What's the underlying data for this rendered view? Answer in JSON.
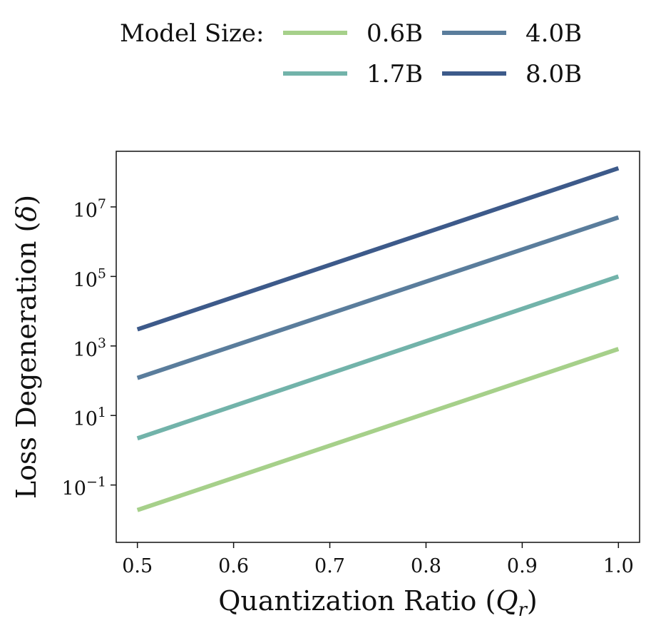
{
  "legend": {
    "title": "Model Size:",
    "entries": [
      {
        "label": "0.6B",
        "color": "#a6d08a"
      },
      {
        "label": "1.7B",
        "color": "#72b3aa"
      },
      {
        "label": "4.0B",
        "color": "#5a7d9c"
      },
      {
        "label": "8.0B",
        "color": "#3d5a8a"
      }
    ]
  },
  "chart_data": {
    "type": "line",
    "xlabel": "Quantization Ratio (Q_r)",
    "xlabel_main": "Quantization Ratio (",
    "xlabel_symbol": "Q",
    "xlabel_sub": "r",
    "xlabel_close": ")",
    "ylabel": "Loss Degeneration (δ)",
    "ylabel_main": "Loss Degeneration (",
    "ylabel_symbol": "δ",
    "ylabel_close": ")",
    "yscale": "log",
    "xlim": [
      0.478,
      1.022
    ],
    "ylim_log10": [
      -2.65,
      8.6
    ],
    "xticks": [
      {
        "value": 0.5,
        "label": "0.5"
      },
      {
        "value": 0.6,
        "label": "0.6"
      },
      {
        "value": 0.7,
        "label": "0.7"
      },
      {
        "value": 0.8,
        "label": "0.8"
      },
      {
        "value": 0.9,
        "label": "0.9"
      },
      {
        "value": 1.0,
        "label": "1.0"
      }
    ],
    "yticks": [
      {
        "exp": -1,
        "base": "10",
        "sup": "−1"
      },
      {
        "exp": 1,
        "base": "10",
        "sup": "1"
      },
      {
        "exp": 3,
        "base": "10",
        "sup": "3"
      },
      {
        "exp": 5,
        "base": "10",
        "sup": "5"
      },
      {
        "exp": 7,
        "base": "10",
        "sup": "7"
      }
    ],
    "grid": false,
    "legend_position": "top-center, outside plot",
    "series": [
      {
        "name": "0.6B",
        "color": "#a6d08a",
        "x": [
          0.5,
          1.0
        ],
        "y": [
          0.019,
          820
        ]
      },
      {
        "name": "1.7B",
        "color": "#72b3aa",
        "x": [
          0.5,
          1.0
        ],
        "y": [
          2.2,
          100000
        ]
      },
      {
        "name": "4.0B",
        "color": "#5a7d9c",
        "x": [
          0.5,
          1.0
        ],
        "y": [
          120,
          5000000
        ]
      },
      {
        "name": "8.0B",
        "color": "#3d5a8a",
        "x": [
          0.5,
          1.0
        ],
        "y": [
          3000,
          130000000
        ]
      }
    ]
  }
}
